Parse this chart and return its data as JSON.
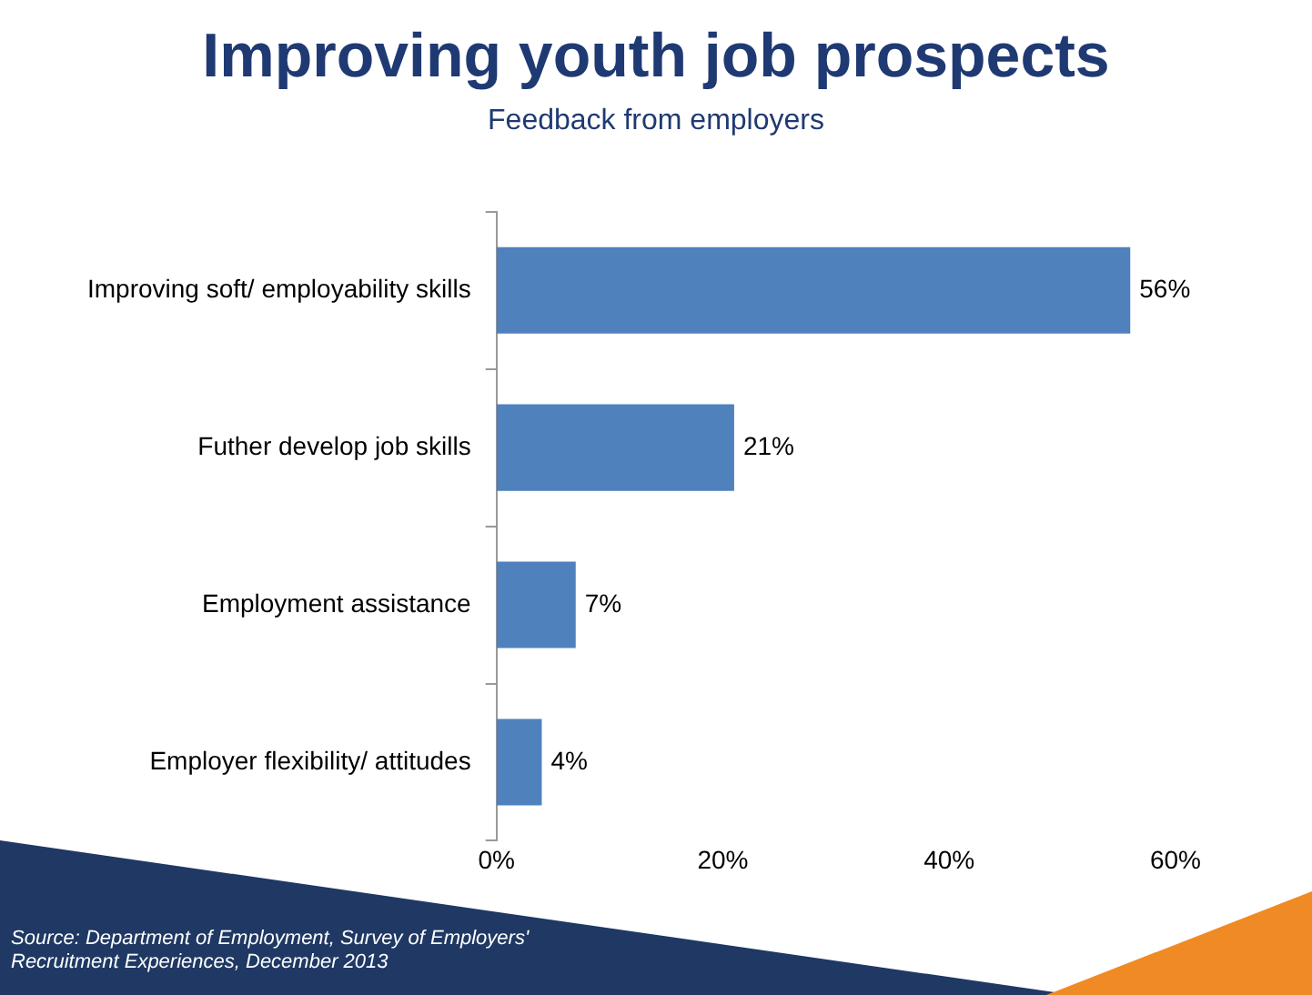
{
  "chart_data": {
    "type": "bar",
    "orientation": "horizontal",
    "title": "Improving youth job prospects",
    "subtitle": "Feedback from employers",
    "categories": [
      "Improving soft/ employability skills",
      "Futher develop job skills",
      "Employment assistance",
      "Employer flexibility/ attitudes"
    ],
    "values": [
      56,
      21,
      7,
      4
    ],
    "value_labels": [
      "56%",
      "21%",
      "7%",
      "4%"
    ],
    "color": "#4f81bd",
    "xlim": [
      0,
      60
    ],
    "xticks": [
      {
        "value": 0,
        "label": "0%"
      },
      {
        "value": 20,
        "label": "20%"
      },
      {
        "value": 40,
        "label": "40%"
      },
      {
        "value": 60,
        "label": "60%"
      }
    ],
    "grid": false,
    "legend": false,
    "annotations": [
      "Source: Department of Employment, Survey of Employers' Recruitment Experiences, December 2013"
    ]
  }
}
